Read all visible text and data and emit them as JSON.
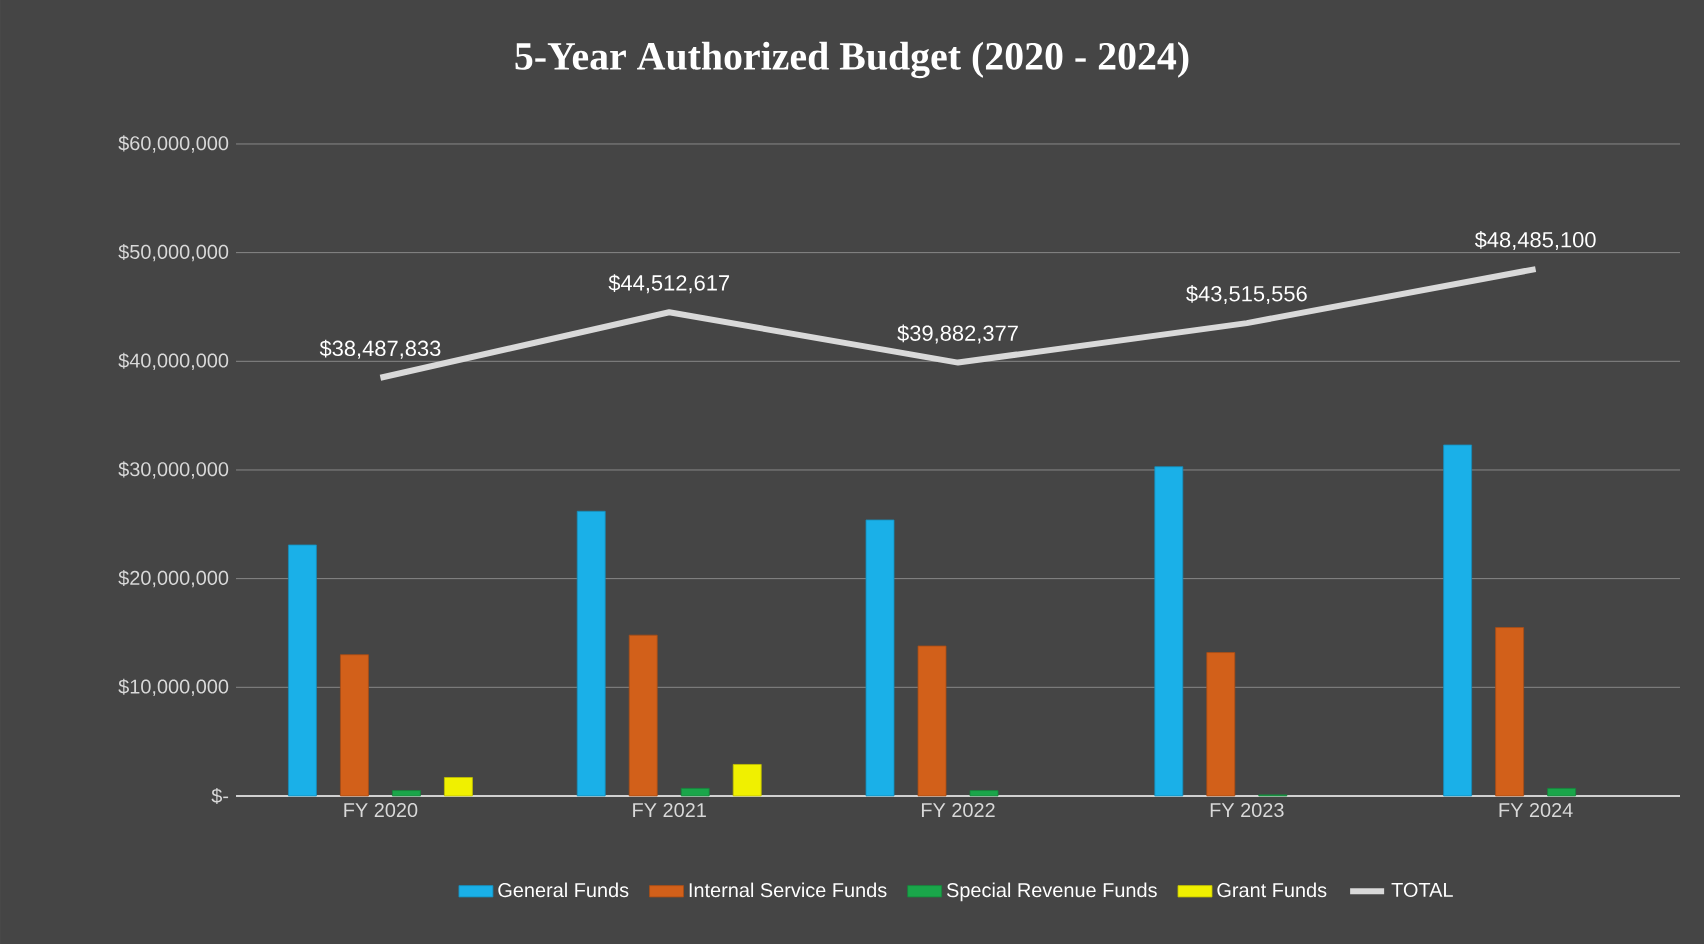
{
  "chart_data": {
    "type": "bar",
    "title": "5-Year Authorized Budget (2020 - 2024)",
    "categories": [
      "FY 2020",
      "FY 2021",
      "FY 2022",
      "FY 2023",
      "FY 2024"
    ],
    "series": [
      {
        "name": "General Funds",
        "color": "#1ab0e8",
        "values": [
          23100000,
          26200000,
          25400000,
          30300000,
          32300000
        ]
      },
      {
        "name": "Internal Service Funds",
        "color": "#d2601a",
        "values": [
          13000000,
          14800000,
          13800000,
          13200000,
          15500000
        ]
      },
      {
        "name": "Special Revenue Funds",
        "color": "#1aa64a",
        "values": [
          500000,
          700000,
          500000,
          100000,
          700000
        ]
      },
      {
        "name": "Grant Funds",
        "color": "#f0f000",
        "values": [
          1700000,
          2900000,
          null,
          null,
          null
        ]
      },
      {
        "name": "TOTAL",
        "type": "line",
        "color": "#d9d9d9",
        "values": [
          38487833,
          44512617,
          39882377,
          43515556,
          48485100
        ],
        "value_labels": [
          "$38,487,833",
          "$44,512,617",
          "$39,882,377",
          "$43,515,556",
          "$48,485,100"
        ]
      }
    ],
    "ylim": [
      0,
      60000000
    ],
    "yticks": [
      {
        "value": 0,
        "label": "$-"
      },
      {
        "value": 10000000,
        "label": "$10,000,000"
      },
      {
        "value": 20000000,
        "label": "$20,000,000"
      },
      {
        "value": 30000000,
        "label": "$30,000,000"
      },
      {
        "value": 40000000,
        "label": "$40,000,000"
      },
      {
        "value": 50000000,
        "label": "$50,000,000"
      },
      {
        "value": 60000000,
        "label": "$60,000,000"
      }
    ],
    "grid": "y",
    "legend": "bottom"
  }
}
